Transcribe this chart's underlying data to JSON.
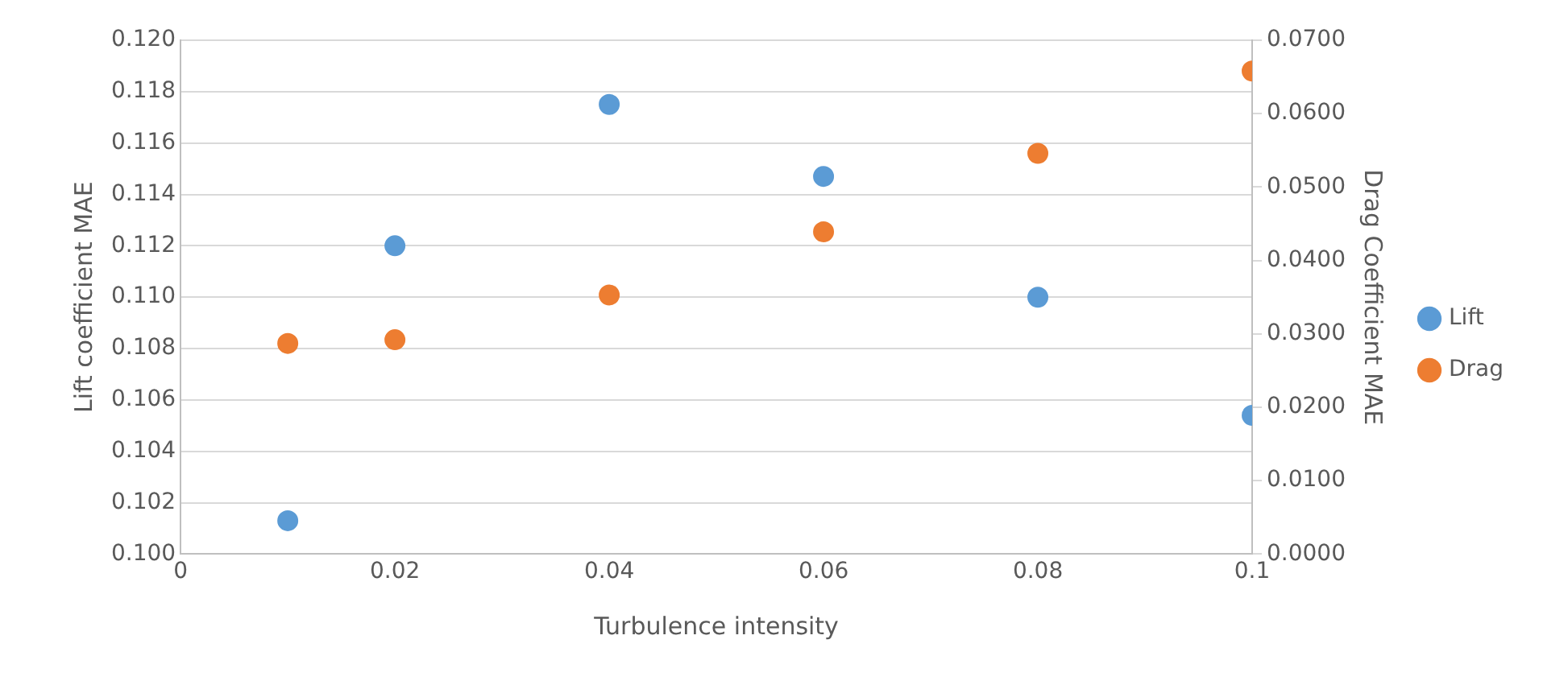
{
  "chart_data": {
    "type": "scatter",
    "xlabel": "Turbulence intensity",
    "ylabel": "Lift coefficient MAE",
    "y2label": "Drag Coefficient MAE",
    "x": [
      0.01,
      0.02,
      0.04,
      0.06,
      0.08,
      0.1
    ],
    "series": [
      {
        "name": "Lift",
        "color": "#5b9bd5",
        "values": [
          0.1013,
          0.112,
          0.1175,
          0.1147,
          0.11,
          0.1054
        ]
      },
      {
        "name": "Drag",
        "color": "#ed7d31",
        "axis": "y2",
        "values": [
          0.0287,
          0.0292,
          0.0353,
          0.0439,
          0.0546,
          0.0658
        ]
      }
    ],
    "xlim": [
      0,
      0.1
    ],
    "xticks": [
      0,
      {
        "value": 0.02,
        "label": "0.02"
      },
      {
        "value": 0.04,
        "label": "0.04"
      },
      {
        "value": 0.06,
        "label": "0.06"
      },
      {
        "value": 0.08,
        "label": "0.08"
      },
      {
        "value": 0.1,
        "label": "0.1"
      }
    ],
    "ylim": [
      0.1,
      0.12
    ],
    "yticks": [
      {
        "value": 0.1,
        "label": "0.100"
      },
      {
        "value": 0.102,
        "label": "0.102"
      },
      {
        "value": 0.104,
        "label": "0.104"
      },
      {
        "value": 0.106,
        "label": "0.106"
      },
      {
        "value": 0.108,
        "label": "0.108"
      },
      {
        "value": 0.11,
        "label": "0.110"
      },
      {
        "value": 0.112,
        "label": "0.112"
      },
      {
        "value": 0.114,
        "label": "0.114"
      },
      {
        "value": 0.116,
        "label": "0.116"
      },
      {
        "value": 0.118,
        "label": "0.118"
      },
      {
        "value": 0.12,
        "label": "0.120"
      }
    ],
    "y2lim": [
      0,
      0.07
    ],
    "y2ticks": [
      {
        "value": 0,
        "label": "0.0000"
      },
      {
        "value": 0.01,
        "label": "0.0100"
      },
      {
        "value": 0.02,
        "label": "0.0200"
      },
      {
        "value": 0.03,
        "label": "0.0300"
      },
      {
        "value": 0.04,
        "label": "0.0400"
      },
      {
        "value": 0.05,
        "label": "0.0500"
      },
      {
        "value": 0.06,
        "label": "0.0600"
      },
      {
        "value": 0.07,
        "label": "0.0700"
      }
    ],
    "grid": "y",
    "legend": "right",
    "marker": "circle"
  }
}
